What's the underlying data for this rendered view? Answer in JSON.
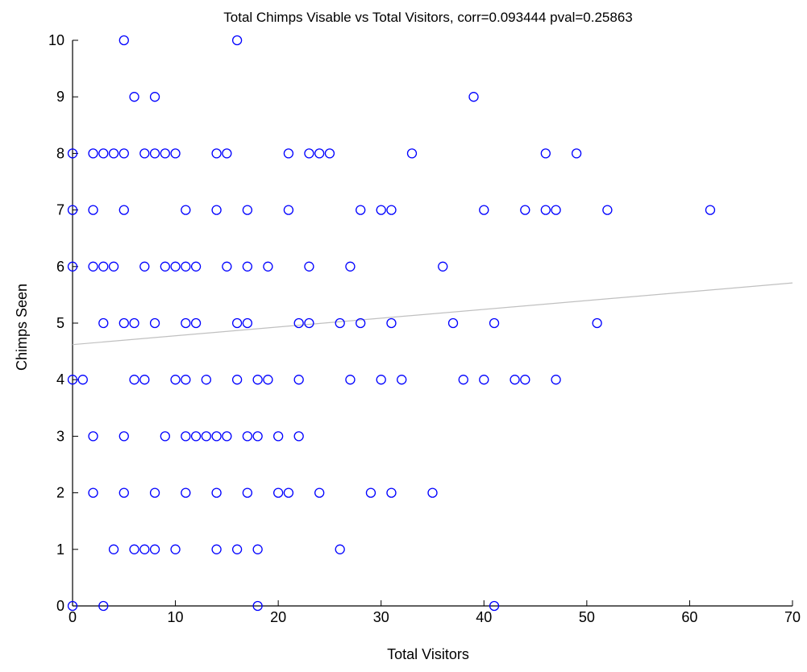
{
  "chart_data": {
    "type": "scatter",
    "title": "Total Chimps Visable vs Total Visitors, corr=0.093444 pval=0.25863",
    "xlabel": "Total Visitors",
    "ylabel": "Chimps Seen",
    "xlim": [
      0,
      70
    ],
    "ylim": [
      0,
      10
    ],
    "xticks": [
      "0",
      "10",
      "20",
      "30",
      "40",
      "50",
      "60",
      "70"
    ],
    "yticks": [
      "0",
      "1",
      "2",
      "3",
      "4",
      "5",
      "6",
      "7",
      "8",
      "9",
      "10"
    ],
    "grid": false,
    "legend": "none",
    "marker_color": "#0000ff",
    "fit_line_color": "#c0c0c0",
    "fit_line": {
      "x": [
        0,
        70
      ],
      "y": [
        4.62,
        5.71
      ]
    },
    "points": [
      [
        5,
        10
      ],
      [
        16,
        10
      ],
      [
        6,
        9
      ],
      [
        8,
        9
      ],
      [
        39,
        9
      ],
      [
        0,
        8
      ],
      [
        2,
        8
      ],
      [
        3,
        8
      ],
      [
        4,
        8
      ],
      [
        5,
        8
      ],
      [
        7,
        8
      ],
      [
        8,
        8
      ],
      [
        9,
        8
      ],
      [
        10,
        8
      ],
      [
        14,
        8
      ],
      [
        15,
        8
      ],
      [
        21,
        8
      ],
      [
        23,
        8
      ],
      [
        24,
        8
      ],
      [
        25,
        8
      ],
      [
        33,
        8
      ],
      [
        46,
        8
      ],
      [
        49,
        8
      ],
      [
        0,
        7
      ],
      [
        2,
        7
      ],
      [
        5,
        7
      ],
      [
        11,
        7
      ],
      [
        14,
        7
      ],
      [
        17,
        7
      ],
      [
        21,
        7
      ],
      [
        28,
        7
      ],
      [
        30,
        7
      ],
      [
        31,
        7
      ],
      [
        40,
        7
      ],
      [
        44,
        7
      ],
      [
        46,
        7
      ],
      [
        47,
        7
      ],
      [
        52,
        7
      ],
      [
        62,
        7
      ],
      [
        0,
        6
      ],
      [
        2,
        6
      ],
      [
        3,
        6
      ],
      [
        4,
        6
      ],
      [
        7,
        6
      ],
      [
        9,
        6
      ],
      [
        10,
        6
      ],
      [
        11,
        6
      ],
      [
        12,
        6
      ],
      [
        15,
        6
      ],
      [
        17,
        6
      ],
      [
        19,
        6
      ],
      [
        23,
        6
      ],
      [
        27,
        6
      ],
      [
        36,
        6
      ],
      [
        3,
        5
      ],
      [
        5,
        5
      ],
      [
        6,
        5
      ],
      [
        8,
        5
      ],
      [
        11,
        5
      ],
      [
        12,
        5
      ],
      [
        16,
        5
      ],
      [
        17,
        5
      ],
      [
        22,
        5
      ],
      [
        23,
        5
      ],
      [
        26,
        5
      ],
      [
        28,
        5
      ],
      [
        31,
        5
      ],
      [
        37,
        5
      ],
      [
        41,
        5
      ],
      [
        51,
        5
      ],
      [
        0,
        4
      ],
      [
        1,
        4
      ],
      [
        6,
        4
      ],
      [
        7,
        4
      ],
      [
        10,
        4
      ],
      [
        11,
        4
      ],
      [
        13,
        4
      ],
      [
        16,
        4
      ],
      [
        18,
        4
      ],
      [
        19,
        4
      ],
      [
        22,
        4
      ],
      [
        27,
        4
      ],
      [
        30,
        4
      ],
      [
        32,
        4
      ],
      [
        38,
        4
      ],
      [
        40,
        4
      ],
      [
        43,
        4
      ],
      [
        44,
        4
      ],
      [
        47,
        4
      ],
      [
        2,
        3
      ],
      [
        5,
        3
      ],
      [
        9,
        3
      ],
      [
        11,
        3
      ],
      [
        12,
        3
      ],
      [
        13,
        3
      ],
      [
        14,
        3
      ],
      [
        15,
        3
      ],
      [
        17,
        3
      ],
      [
        18,
        3
      ],
      [
        20,
        3
      ],
      [
        22,
        3
      ],
      [
        2,
        2
      ],
      [
        5,
        2
      ],
      [
        8,
        2
      ],
      [
        11,
        2
      ],
      [
        14,
        2
      ],
      [
        17,
        2
      ],
      [
        20,
        2
      ],
      [
        21,
        2
      ],
      [
        24,
        2
      ],
      [
        29,
        2
      ],
      [
        31,
        2
      ],
      [
        35,
        2
      ],
      [
        4,
        1
      ],
      [
        6,
        1
      ],
      [
        7,
        1
      ],
      [
        8,
        1
      ],
      [
        10,
        1
      ],
      [
        14,
        1
      ],
      [
        16,
        1
      ],
      [
        18,
        1
      ],
      [
        26,
        1
      ],
      [
        0,
        0
      ],
      [
        3,
        0
      ],
      [
        18,
        0
      ],
      [
        41,
        0
      ]
    ]
  }
}
